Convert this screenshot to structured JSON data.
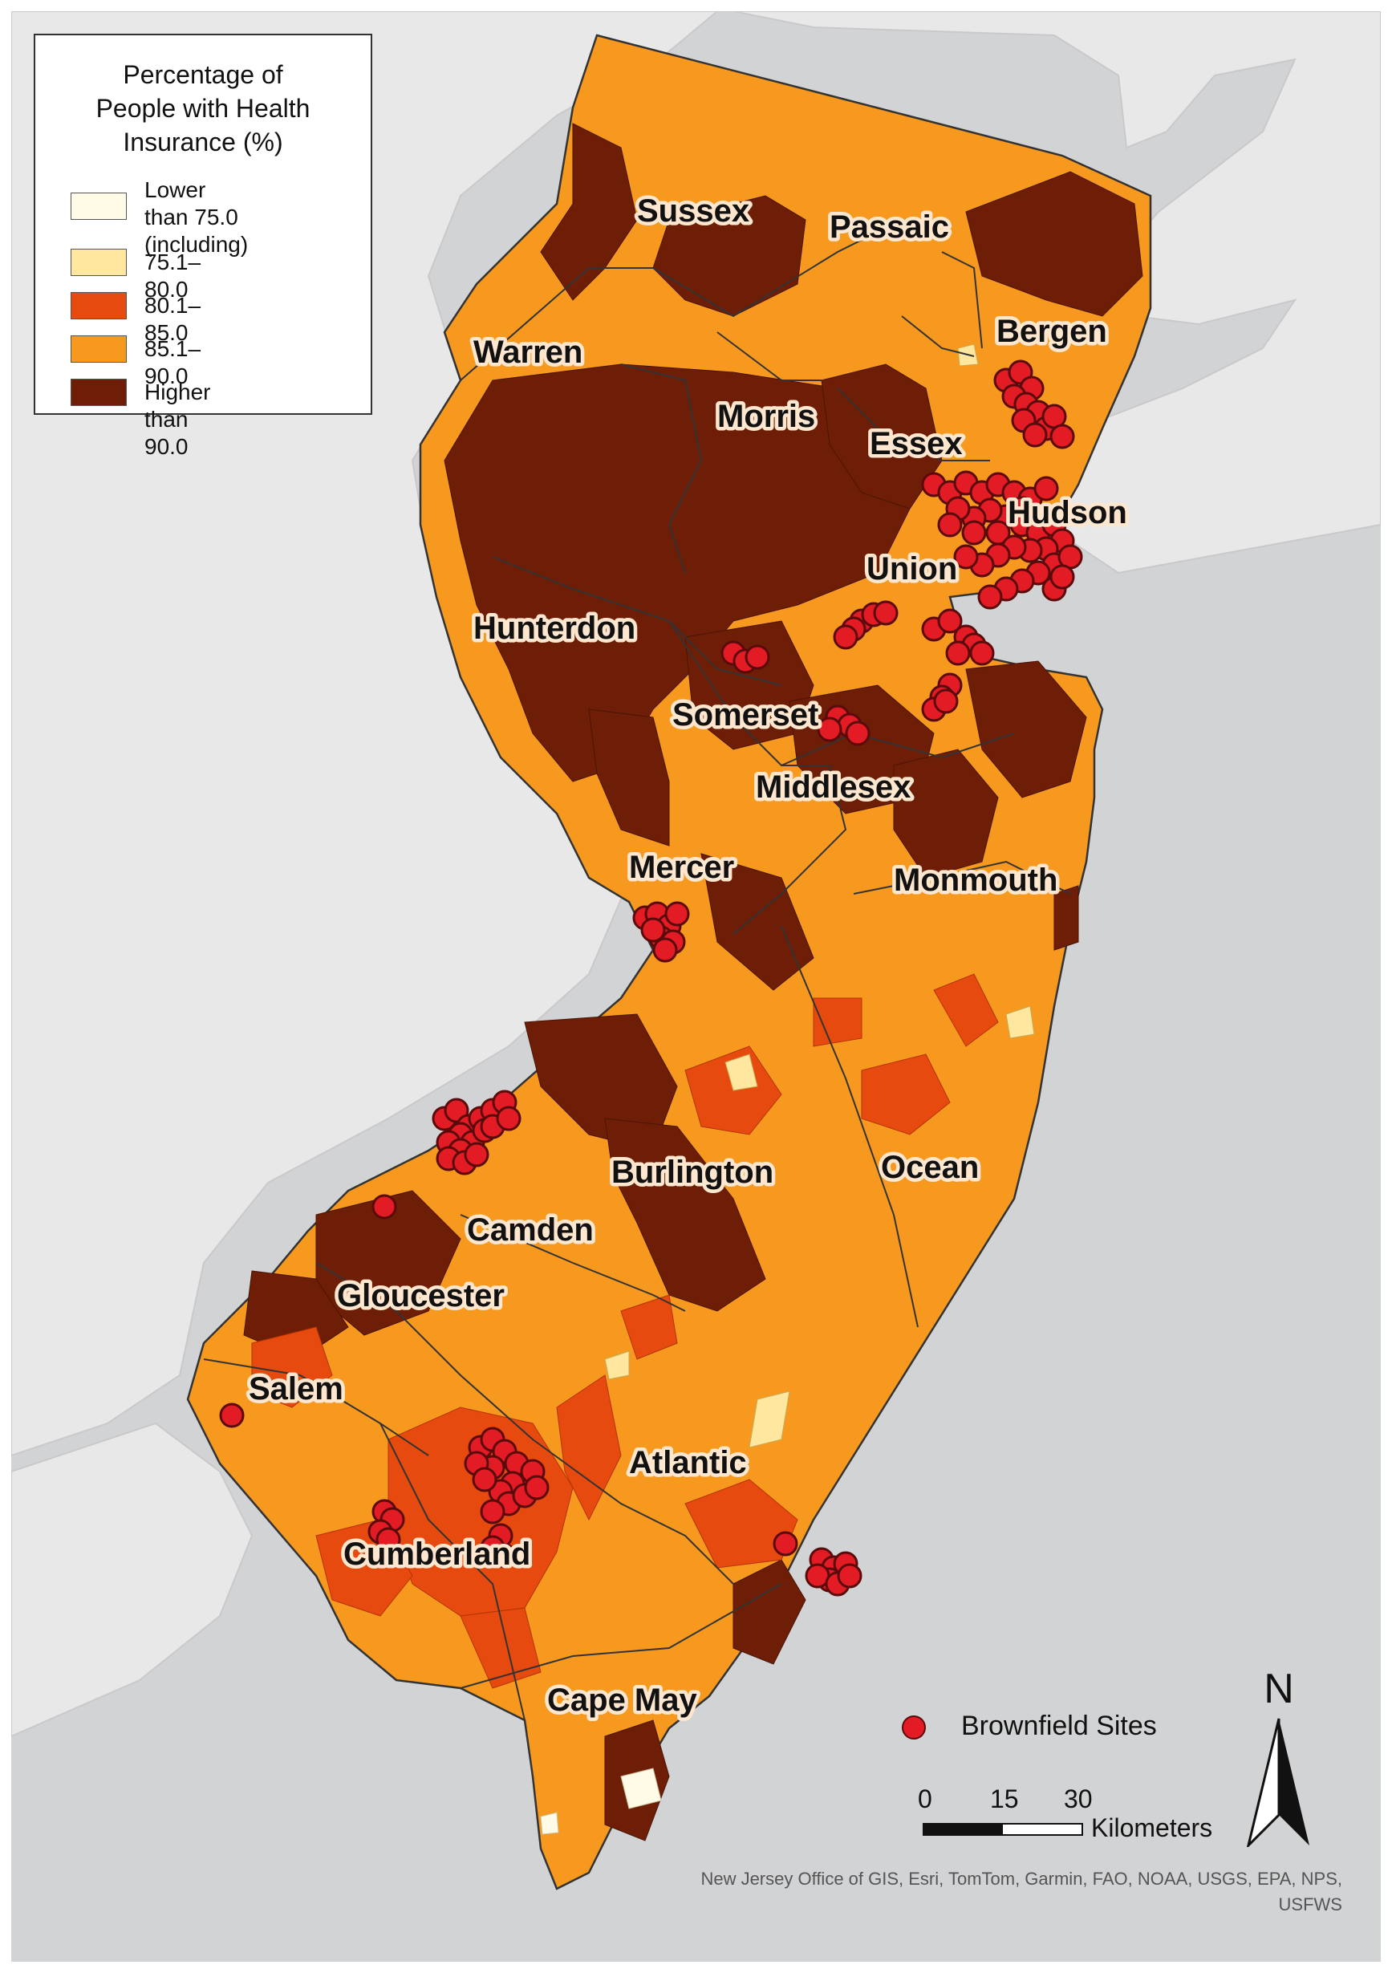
{
  "legend": {
    "title": "Percentage of\nPeople with Health\nInsurance (%)",
    "classes": [
      {
        "label": "Lower than 75.0\n(including)",
        "color": "#fffbe6"
      },
      {
        "label": "75.1–80.0",
        "color": "#ffe7a0"
      },
      {
        "label": "80.1–85.0",
        "color": "#e64a0e"
      },
      {
        "label": "85.1–90.0",
        "color": "#f7991f"
      },
      {
        "label": "Higher than 90.0",
        "color": "#6e1e06"
      }
    ]
  },
  "counties": {
    "sussex": "Sussex",
    "passaic": "Passaic",
    "bergen": "Bergen",
    "warren": "Warren",
    "morris": "Morris",
    "essex": "Essex",
    "hudson": "Hudson",
    "union": "Union",
    "hunterdon": "Hunterdon",
    "somerset": "Somerset",
    "middlesex": "Middlesex",
    "mercer": "Mercer",
    "monmouth": "Monmouth",
    "burlington": "Burlington",
    "ocean": "Ocean",
    "camden": "Camden",
    "gloucester": "Gloucester",
    "salem": "Salem",
    "atlantic": "Atlantic",
    "cumberland": "Cumberland",
    "cape_may": "Cape May"
  },
  "brownfield_legend": {
    "label": "Brownfield Sites",
    "color": "#e21b24"
  },
  "scale": {
    "ticks": [
      "0",
      "15",
      "30"
    ],
    "units": "Kilometers"
  },
  "north_arrow": {
    "label": "N",
    "icon": "north-arrow-icon"
  },
  "attribution": "New Jersey Office of GIS, Esri, TomTom, Garmin, FAO, NOAA, USGS, EPA, NPS, USFWS",
  "colors": {
    "water": "#d2d3d5",
    "land_outside": "#e8e8e9",
    "border": "#333333"
  }
}
